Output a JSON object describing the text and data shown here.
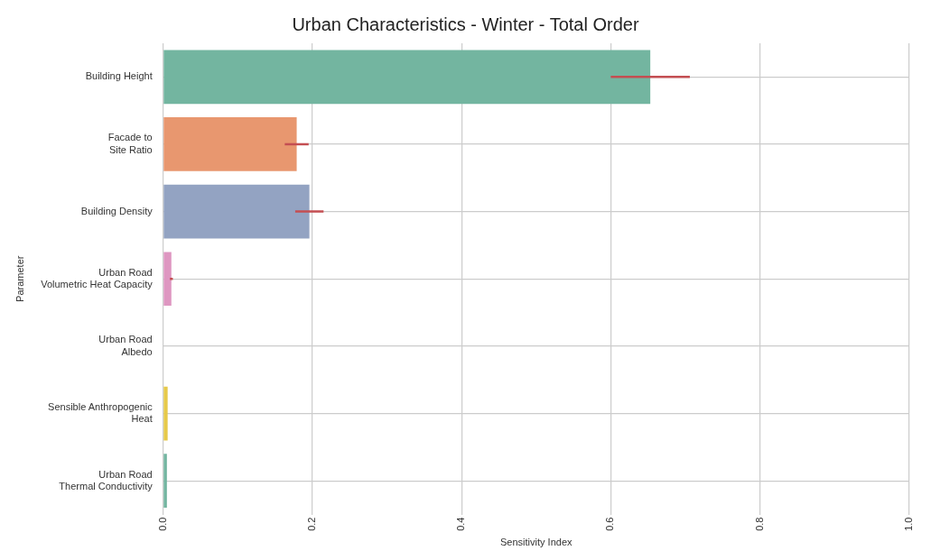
{
  "chart_data": {
    "type": "bar",
    "orientation": "horizontal",
    "title": "Urban Characteristics - Winter - Total Order",
    "xlabel": "Sensitivity Index",
    "ylabel": "Parameter",
    "categories": [
      "Building Height",
      "Facade to\nSite Ratio",
      "Building Density",
      "Urban Road\nVolumetric Heat Capacity",
      "Urban Road\nAlbedo",
      "Sensible Anthropogenic\nHeat",
      "Urban Road\nThermal Conductivity"
    ],
    "values": [
      0.653,
      0.179,
      0.196,
      0.011,
      0,
      0.006,
      0.005
    ],
    "colors": [
      "#73b5a0",
      "#e8976f",
      "#93a3c2",
      "#de97c1",
      "#a5c96a",
      "#e6c94a",
      "#73b5a0"
    ],
    "errors": [
      0.053,
      0.016,
      0.019,
      0.002,
      null,
      null,
      null
    ],
    "xlim": [
      0,
      1
    ],
    "xticks": [
      {
        "value": 0,
        "label": "0.0"
      },
      0.2,
      0.4,
      0.6,
      0.8,
      {
        "value": 1,
        "label": "1.0"
      }
    ],
    "grid": true,
    "legend": false
  }
}
